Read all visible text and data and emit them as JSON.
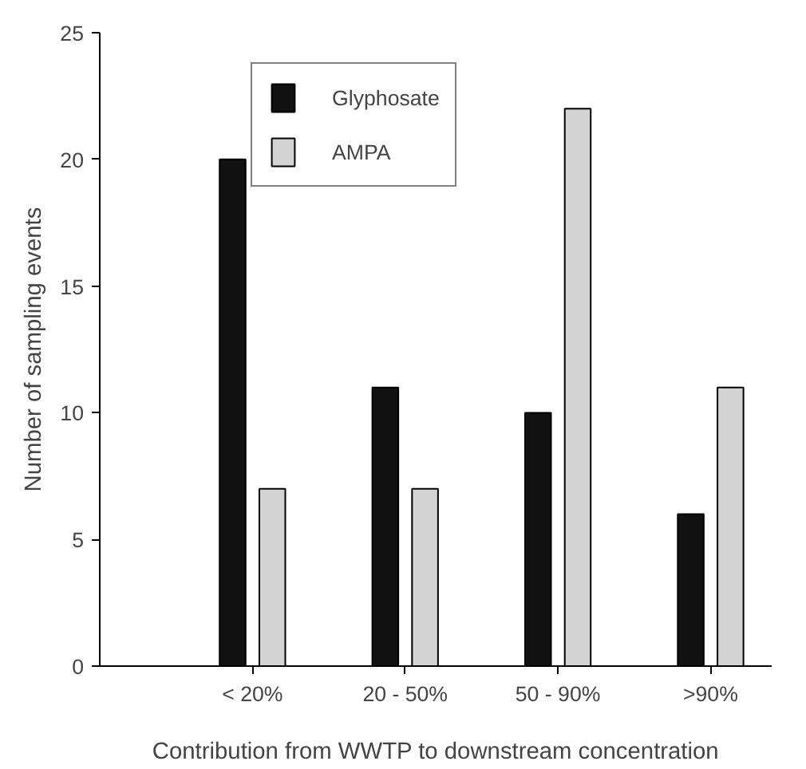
{
  "chart_data": {
    "type": "bar",
    "xlabel": "Contribution from WWTP to downstream concentration",
    "ylabel": "Number of sampling events",
    "categories": [
      "< 20%",
      "20 - 50%",
      "50 - 90%",
      ">90%"
    ],
    "series": [
      {
        "name": "Glyphosate",
        "color": "#111111",
        "values": [
          20,
          11,
          10,
          6
        ]
      },
      {
        "name": "AMPA",
        "color": "#d3d3d3",
        "values": [
          7,
          7,
          22,
          11
        ]
      }
    ],
    "ylim": [
      0,
      25
    ],
    "yticks": [
      0,
      5,
      10,
      15,
      20,
      25
    ],
    "grid": false,
    "legend": "top left"
  }
}
